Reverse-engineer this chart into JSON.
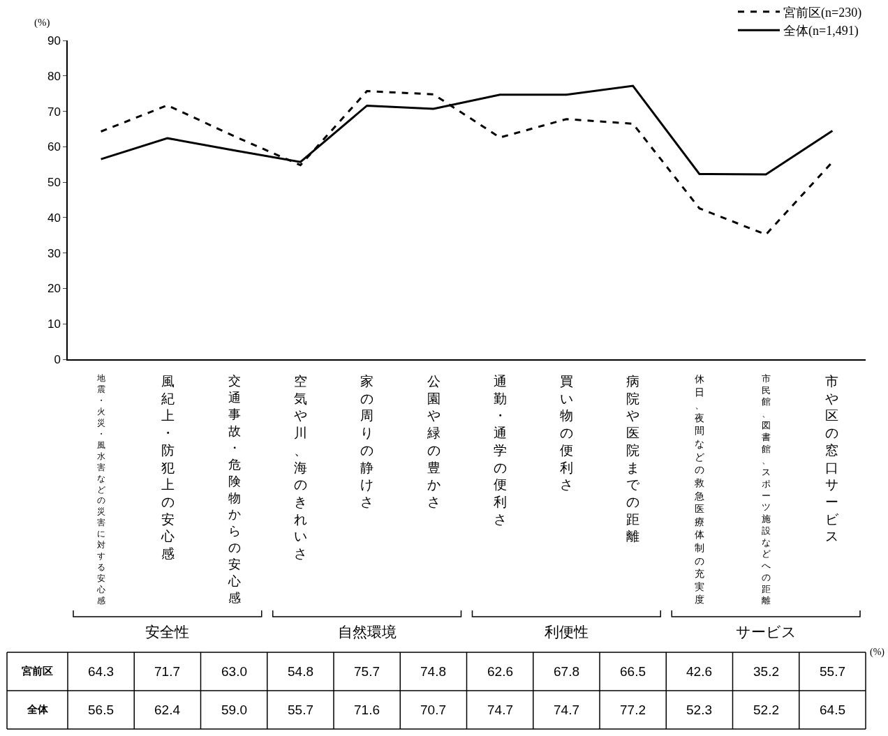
{
  "chart_data": {
    "type": "line",
    "ylabel": "(%)",
    "categories": [
      "地震・火災・風水害などの災害に対する安心感",
      "風紀上・防犯上の安心感",
      "交通事故・危険物からの安心感",
      "空気や川、海のきれいさ",
      "家の周りの静けさ",
      "公園や緑の豊かさ",
      "通勤・通学の便利さ",
      "買い物の便利さ",
      "病院や医院までの距離",
      "休日、夜間などの救急医療体制の充実度",
      "市民館、図書館、スポーツ施設などへの距離",
      "市や区の窓口サービス"
    ],
    "series": [
      {
        "name": "宮前区(n=230)",
        "color": "#000000",
        "line_style": "dashed",
        "values": [
          64.3,
          71.7,
          63.0,
          54.8,
          75.7,
          74.8,
          62.6,
          67.8,
          66.5,
          42.6,
          35.2,
          55.7
        ],
        "value_labels": [
          "64.3",
          "71.7",
          "63.0",
          "54.8",
          "75.7",
          "74.8",
          "62.6",
          "67.8",
          "66.5",
          "42.6",
          "35.2",
          "55.7"
        ]
      },
      {
        "name": "全体(n=1,491)",
        "color": "#000000",
        "line_style": "solid",
        "values": [
          56.5,
          62.4,
          59.0,
          55.7,
          71.6,
          70.7,
          74.7,
          74.7,
          77.2,
          52.3,
          52.2,
          64.5
        ],
        "value_labels": [
          "56.5",
          "62.4",
          "59.0",
          "55.7",
          "71.6",
          "70.7",
          "74.7",
          "74.7",
          "77.2",
          "52.3",
          "52.2",
          "64.5"
        ]
      }
    ],
    "ylim": [
      0,
      90
    ],
    "yticks": [
      0,
      10,
      20,
      30,
      40,
      50,
      60,
      70,
      80,
      90
    ],
    "legend": "top right",
    "marker": "none",
    "annotations": [
      "安全性",
      "自然環境",
      "利便性",
      "サービス",
      "宮前区",
      "全体",
      "(%)"
    ]
  }
}
